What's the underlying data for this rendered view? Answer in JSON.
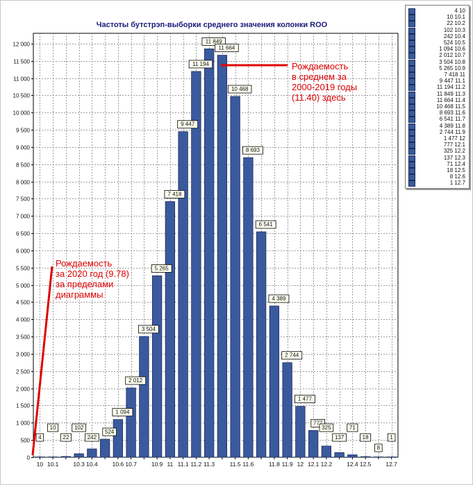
{
  "chart_data": {
    "type": "bar",
    "title": "Частоты бутстрэп-выборки среднего значения колонки ROO",
    "xlabel": "",
    "ylabel": "",
    "ylim": [
      0,
      12300
    ],
    "yticks": [
      0,
      500,
      1000,
      1500,
      2000,
      2500,
      3000,
      3500,
      4000,
      4500,
      5000,
      5500,
      6000,
      6500,
      7000,
      7500,
      8000,
      8500,
      9000,
      9500,
      10000,
      10500,
      11000,
      11500,
      12000
    ],
    "ytick_labels": [
      "0",
      "500",
      "1 000",
      "1 500",
      "2 000",
      "2 500",
      "3 000",
      "3 500",
      "4 000",
      "4 500",
      "5 000",
      "5 500",
      "6 000",
      "6 500",
      "7 000",
      "7 500",
      "8 000",
      "8 500",
      "9 000",
      "9 500",
      "10 000",
      "10 500",
      "11 000",
      "11 500",
      "12 000"
    ],
    "categories": [
      "10",
      "10.1",
      "10.2",
      "10.3",
      "10.4",
      "10.5",
      "10.6",
      "10.7",
      "10.8",
      "10.9",
      "11",
      "11.1",
      "11.2",
      "11.3",
      "11.4",
      "11.5",
      "11.6",
      "11.7",
      "11.8",
      "11.9",
      "12",
      "12.1",
      "12.2",
      "12.3",
      "12.4",
      "12.5",
      "12.6",
      "12.7"
    ],
    "x_tick_labels": [
      "10",
      "10.1",
      "",
      "10.3",
      "10.4",
      "",
      "10.6",
      "10.7",
      "",
      "10.9",
      "11",
      "11.1",
      "11.2",
      "11.3",
      "",
      "11.5",
      "11.6",
      "",
      "11.8",
      "11.9",
      "12",
      "12.1",
      "12.2",
      "",
      "12.4",
      "12.5",
      "",
      "12.7"
    ],
    "values": [
      4,
      10,
      22,
      102,
      242,
      524,
      1094,
      2012,
      3504,
      5265,
      7418,
      9447,
      11194,
      11849,
      11664,
      10468,
      8693,
      6541,
      4389,
      2744,
      1477,
      777,
      325,
      137,
      71,
      18,
      8,
      1
    ],
    "data_labels": [
      "4",
      "10",
      "22",
      "102",
      "242",
      "524",
      "1 094",
      "2 012",
      "3 504",
      "5 265",
      "7 418",
      "9 447",
      "11 194",
      "11 849",
      "11 664",
      "10 468",
      "8 693",
      "6 541",
      "4 389",
      "2 744",
      "1 477",
      "777",
      "325",
      "137",
      "71",
      "18",
      "8",
      "1"
    ],
    "grid": true,
    "legend_position": "right",
    "bar_color": "#3a5a9e",
    "legend_entries": [
      "4 10",
      "10 10.1",
      "22 10.2",
      "102 10.3",
      "242 10.4",
      "524 10.5",
      "1 094 10.6",
      "2 012 10.7",
      "3 504 10.8",
      "5 265 10.9",
      "7 418 11",
      "9 447 11.1",
      "11 194 11.2",
      "11 849 11.3",
      "11 664 11.4",
      "10 468 11.5",
      "8 693 11.6",
      "6 541 11.7",
      "4 389 11.8",
      "2 744 11.9",
      "1 477 12",
      "777 12.1",
      "325 12.2",
      "137 12.3",
      "71 12.4",
      "18 12.5",
      "8 12.6",
      "1 12.7"
    ]
  },
  "annotations": {
    "color": "#e00000",
    "right_note": [
      "Рождаемость",
      "в среднем за",
      "2000-2019 годы",
      "(11.40) здесь"
    ],
    "left_note": [
      "Рождаемость",
      "за 2020 год (9.78)",
      "за пределами",
      "диаграммы"
    ]
  }
}
